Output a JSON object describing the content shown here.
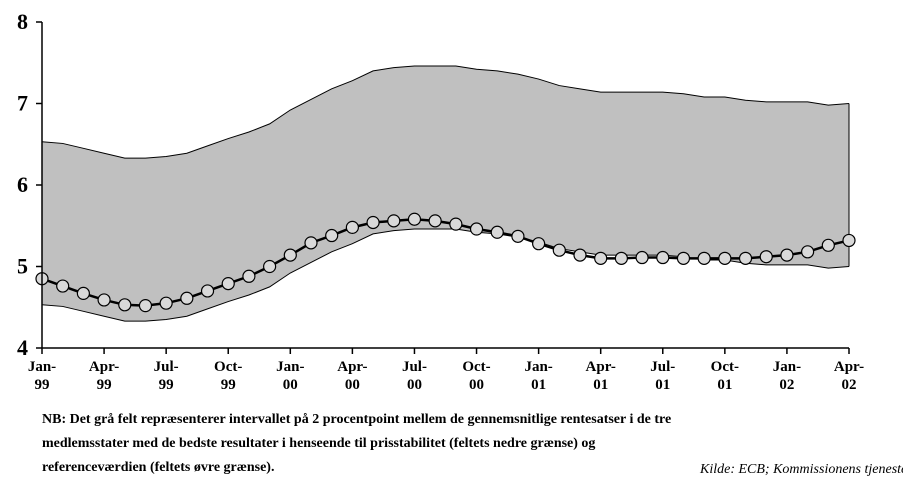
{
  "chart_data": {
    "type": "band-line",
    "categories": [
      "Jan-\n99",
      null,
      null,
      "Apr-\n99",
      null,
      null,
      "Jul-\n99",
      null,
      null,
      "Oct-\n99",
      null,
      null,
      "Jan-\n00",
      null,
      null,
      "Apr-\n00",
      null,
      null,
      "Jul-\n00",
      null,
      null,
      "Oct-\n00",
      null,
      null,
      "Jan-\n01",
      null,
      null,
      "Apr-\n01",
      null,
      null,
      "Jul-\n01",
      null,
      null,
      "Oct-\n01",
      null,
      null,
      "Jan-\n02",
      null,
      null,
      "Apr-\n02"
    ],
    "band": {
      "color": "#c0c0c0",
      "upper": [
        6.53,
        6.51,
        6.45,
        6.39,
        6.33,
        6.33,
        6.35,
        6.39,
        6.48,
        6.57,
        6.65,
        6.75,
        6.92,
        7.05,
        7.18,
        7.28,
        7.4,
        7.44,
        7.46,
        7.46,
        7.46,
        7.42,
        7.4,
        7.36,
        7.3,
        7.22,
        7.18,
        7.14,
        7.14,
        7.14,
        7.14,
        7.12,
        7.08,
        7.08,
        7.04,
        7.02,
        7.02,
        7.02,
        6.98,
        7.0
      ],
      "lower": [
        4.53,
        4.51,
        4.45,
        4.39,
        4.33,
        4.33,
        4.35,
        4.39,
        4.48,
        4.57,
        4.65,
        4.75,
        4.92,
        5.05,
        5.18,
        5.28,
        5.4,
        5.44,
        5.46,
        5.46,
        5.46,
        5.42,
        5.4,
        5.36,
        5.3,
        5.22,
        5.18,
        5.14,
        5.14,
        5.14,
        5.14,
        5.12,
        5.08,
        5.08,
        5.04,
        5.02,
        5.02,
        5.02,
        4.98,
        5.0
      ]
    },
    "series": [
      {
        "color": "#000000",
        "marker_color": "#d9d9d9",
        "values": [
          4.85,
          4.76,
          4.67,
          4.59,
          4.53,
          4.52,
          4.55,
          4.61,
          4.7,
          4.79,
          4.88,
          5.0,
          5.14,
          5.29,
          5.38,
          5.48,
          5.54,
          5.56,
          5.58,
          5.56,
          5.52,
          5.46,
          5.42,
          5.37,
          5.28,
          5.2,
          5.14,
          5.1,
          5.1,
          5.11,
          5.11,
          5.1,
          5.1,
          5.1,
          5.1,
          5.12,
          5.14,
          5.18,
          5.26,
          5.32
        ]
      }
    ],
    "ylim": [
      4,
      8
    ],
    "yticks": [
      4,
      5,
      6,
      7,
      8
    ],
    "note": "NB: Det grå felt repræsenterer intervallet på 2 procentpoint mellem de gennemsnitlige rentesatser i de tre medlemsstater med de bedste resultater i henseende til prisstabilitet (feltets nedre grænse) og referenceværdien (feltets øvre grænse).",
    "source": "Kilde: ECB; Kommissionens tjenestegre"
  }
}
